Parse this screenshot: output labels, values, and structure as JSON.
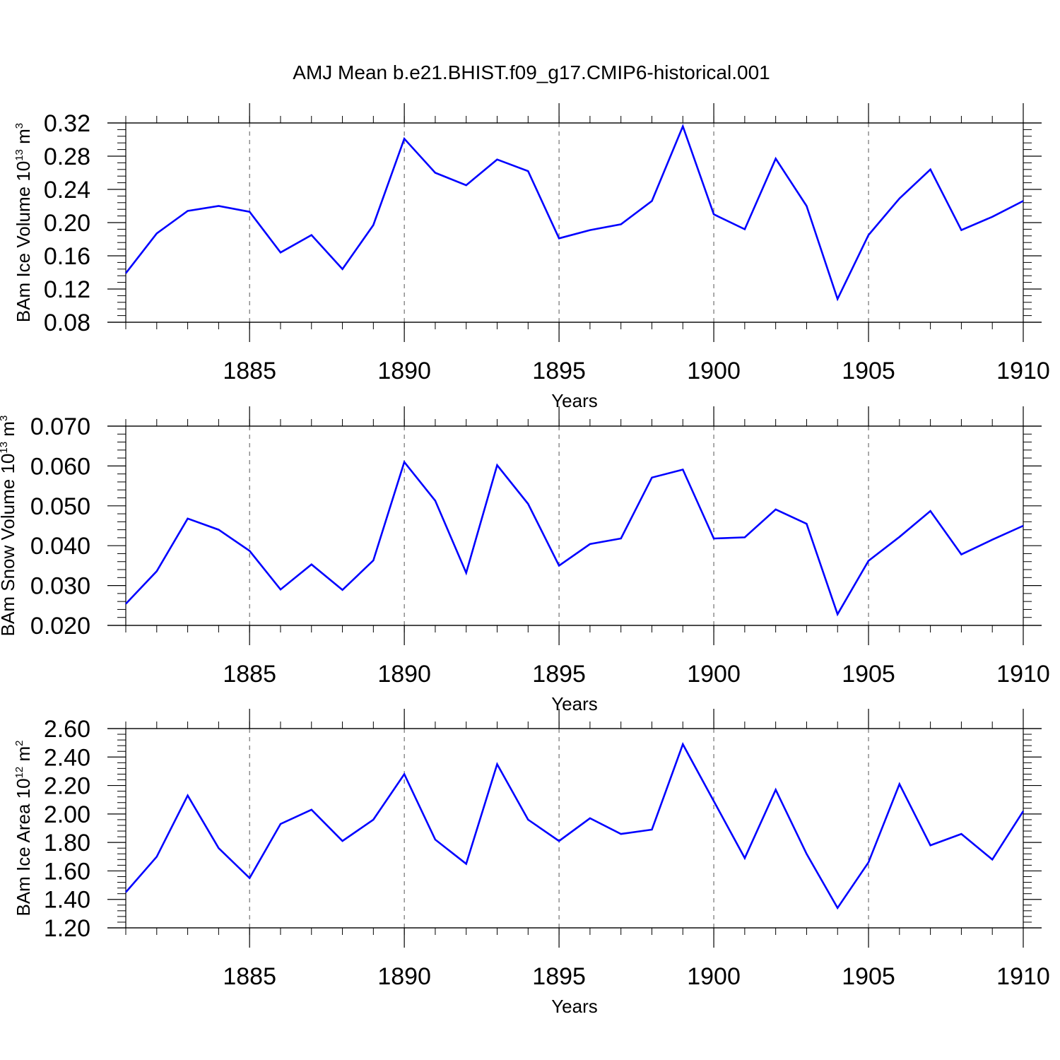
{
  "title": "AMJ Mean b.e21.BHIST.f09_g17.CMIP6-historical.001",
  "chart_data": [
    {
      "type": "line",
      "title": "",
      "xlabel": "Years",
      "ylabel_main": "BAm Ice Volume 10",
      "ylabel_sup": "13",
      "ylabel_unit": " m",
      "ylabel_unit_sup": "3",
      "x": [
        1881,
        1882,
        1883,
        1884,
        1885,
        1886,
        1887,
        1888,
        1889,
        1890,
        1891,
        1892,
        1893,
        1894,
        1895,
        1896,
        1897,
        1898,
        1899,
        1900,
        1901,
        1902,
        1903,
        1904,
        1905,
        1906,
        1907,
        1908,
        1909,
        1910
      ],
      "values": [
        0.139,
        0.187,
        0.214,
        0.22,
        0.213,
        0.164,
        0.185,
        0.144,
        0.197,
        0.301,
        0.26,
        0.245,
        0.276,
        0.262,
        0.181,
        0.191,
        0.198,
        0.226,
        0.316,
        0.21,
        0.192,
        0.277,
        0.22,
        0.108,
        0.185,
        0.229,
        0.264,
        0.191,
        0.207,
        0.226
      ],
      "xlim": [
        1881,
        1910
      ],
      "ylim": [
        0.08,
        0.32
      ],
      "xticks": [
        1885,
        1890,
        1895,
        1900,
        1905,
        1910
      ],
      "xtick_labels": [
        "1885",
        "1890",
        "1895",
        "1900",
        "1905",
        "1910"
      ],
      "yticks": [
        0.08,
        0.12,
        0.16,
        0.2,
        0.24,
        0.28,
        0.32
      ],
      "ytick_labels": [
        "0.08",
        "0.12",
        "0.16",
        "0.20",
        "0.24",
        "0.28",
        "0.32"
      ],
      "line_color": "#0000ff"
    },
    {
      "type": "line",
      "title": "",
      "xlabel": "Years",
      "ylabel_main": "BAm Snow Volume 10",
      "ylabel_sup": "13",
      "ylabel_unit": " m",
      "ylabel_unit_sup": "3",
      "x": [
        1881,
        1882,
        1883,
        1884,
        1885,
        1886,
        1887,
        1888,
        1889,
        1890,
        1891,
        1892,
        1893,
        1894,
        1895,
        1896,
        1897,
        1898,
        1899,
        1900,
        1901,
        1902,
        1903,
        1904,
        1905,
        1906,
        1907,
        1908,
        1909,
        1910
      ],
      "values": [
        0.0254,
        0.0336,
        0.0468,
        0.044,
        0.0387,
        0.029,
        0.0353,
        0.0289,
        0.0363,
        0.061,
        0.0513,
        0.0332,
        0.0602,
        0.0505,
        0.035,
        0.0404,
        0.0418,
        0.0571,
        0.0591,
        0.0418,
        0.0421,
        0.0491,
        0.0455,
        0.0228,
        0.0362,
        0.0422,
        0.0487,
        0.0378,
        0.0415,
        0.045
      ],
      "xlim": [
        1881,
        1910
      ],
      "ylim": [
        0.02,
        0.07
      ],
      "xticks": [
        1885,
        1890,
        1895,
        1900,
        1905,
        1910
      ],
      "xtick_labels": [
        "1885",
        "1890",
        "1895",
        "1900",
        "1905",
        "1910"
      ],
      "yticks": [
        0.02,
        0.03,
        0.04,
        0.05,
        0.06,
        0.07
      ],
      "ytick_labels": [
        "0.020",
        "0.030",
        "0.040",
        "0.050",
        "0.060",
        "0.070"
      ],
      "line_color": "#0000ff"
    },
    {
      "type": "line",
      "title": "",
      "xlabel": "Years",
      "ylabel_main": "BAm Ice Area 10",
      "ylabel_sup": "12",
      "ylabel_unit": " m",
      "ylabel_unit_sup": "2",
      "x": [
        1881,
        1882,
        1883,
        1884,
        1885,
        1886,
        1887,
        1888,
        1889,
        1890,
        1891,
        1892,
        1893,
        1894,
        1895,
        1896,
        1897,
        1898,
        1899,
        1900,
        1901,
        1902,
        1903,
        1904,
        1905,
        1906,
        1907,
        1908,
        1909,
        1910
      ],
      "values": [
        1.45,
        1.7,
        2.13,
        1.76,
        1.55,
        1.93,
        2.03,
        1.81,
        1.96,
        2.28,
        1.82,
        1.65,
        2.35,
        1.96,
        1.81,
        1.97,
        1.86,
        1.89,
        2.49,
        2.09,
        1.69,
        2.17,
        1.72,
        1.34,
        1.66,
        2.21,
        1.78,
        1.86,
        1.68,
        2.02
      ],
      "xlim": [
        1881,
        1910
      ],
      "ylim": [
        1.2,
        2.6
      ],
      "xticks": [
        1885,
        1890,
        1895,
        1900,
        1905,
        1910
      ],
      "xtick_labels": [
        "1885",
        "1890",
        "1895",
        "1900",
        "1905",
        "1910"
      ],
      "yticks": [
        1.2,
        1.4,
        1.6,
        1.8,
        2.0,
        2.2,
        2.4,
        2.6
      ],
      "ytick_labels": [
        "1.20",
        "1.40",
        "1.60",
        "1.80",
        "2.00",
        "2.20",
        "2.40",
        "2.60"
      ],
      "line_color": "#0000ff"
    }
  ]
}
